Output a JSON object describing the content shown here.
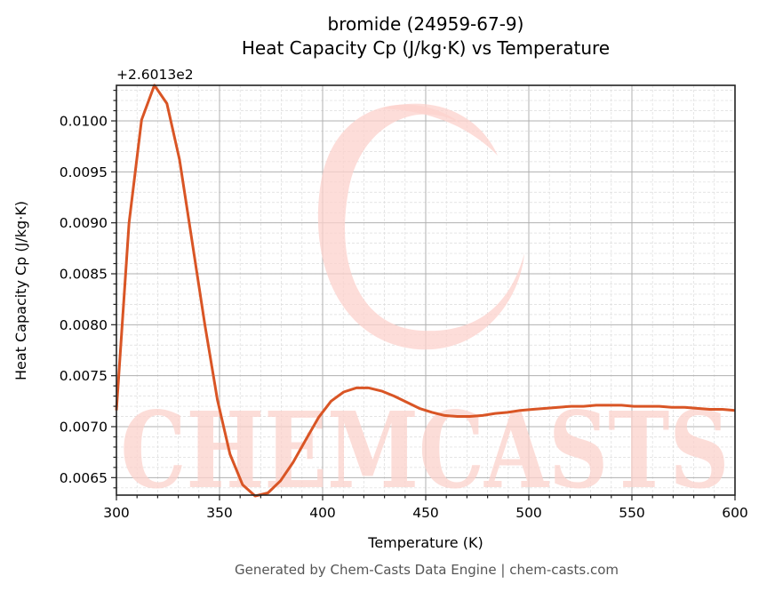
{
  "title": {
    "line1": "bromide (24959-67-9)",
    "line2": "Heat Capacity Cp (J/kg·K) vs Temperature"
  },
  "axes": {
    "xlabel": "Temperature (K)",
    "ylabel": "Heat Capacity Cp (J/kg·K)",
    "y_offset_label": "+2.6013e2",
    "x_ticks": [
      "300",
      "350",
      "400",
      "450",
      "500",
      "550",
      "600"
    ],
    "y_ticks": [
      "0.0065",
      "0.0070",
      "0.0075",
      "0.0080",
      "0.0085",
      "0.0090",
      "0.0095",
      "0.0100"
    ]
  },
  "footer": "Generated by Chem-Casts Data Engine | chem-casts.com",
  "watermark": "CHEMCASTS",
  "colors": {
    "line": "#d95525",
    "watermark": "#fcd2cc",
    "grid_major": "#b0b0b0",
    "grid_minor": "#dcdcdc"
  },
  "chart_data": {
    "type": "line",
    "title": "bromide (24959-67-9) Heat Capacity Cp (J/kg·K) vs Temperature",
    "xlabel": "Temperature (K)",
    "ylabel": "Heat Capacity Cp (J/kg·K)",
    "y_offset": 260.13,
    "xlim": [
      300,
      600
    ],
    "ylim": [
      0.00632,
      0.01035
    ],
    "grid": true,
    "series": [
      {
        "name": "Cp",
        "x": [
          300.0,
          306.1,
          312.2,
          318.4,
          324.5,
          330.6,
          336.7,
          342.9,
          349.0,
          355.1,
          361.2,
          367.3,
          373.5,
          379.6,
          385.7,
          391.8,
          398.0,
          404.1,
          410.2,
          416.3,
          422.4,
          428.6,
          434.7,
          440.8,
          446.9,
          453.1,
          459.2,
          465.3,
          471.4,
          477.6,
          483.7,
          489.8,
          495.9,
          502.0,
          508.2,
          514.3,
          520.4,
          526.5,
          532.7,
          538.8,
          544.9,
          551.0,
          557.1,
          563.3,
          569.4,
          575.5,
          581.6,
          587.8,
          593.9,
          600.0
        ],
        "values": [
          0.00716,
          0.009,
          0.01001,
          0.01035,
          0.01017,
          0.00962,
          0.00882,
          0.008,
          0.00726,
          0.00673,
          0.00643,
          0.00632,
          0.00635,
          0.00647,
          0.00665,
          0.00687,
          0.00709,
          0.00725,
          0.00734,
          0.00738,
          0.00738,
          0.00735,
          0.0073,
          0.00724,
          0.00718,
          0.00714,
          0.00711,
          0.0071,
          0.0071,
          0.00711,
          0.00713,
          0.00714,
          0.00716,
          0.00717,
          0.00718,
          0.00719,
          0.0072,
          0.0072,
          0.00721,
          0.00721,
          0.00721,
          0.0072,
          0.0072,
          0.0072,
          0.00719,
          0.00719,
          0.00718,
          0.00717,
          0.00717,
          0.00716
        ]
      }
    ]
  }
}
